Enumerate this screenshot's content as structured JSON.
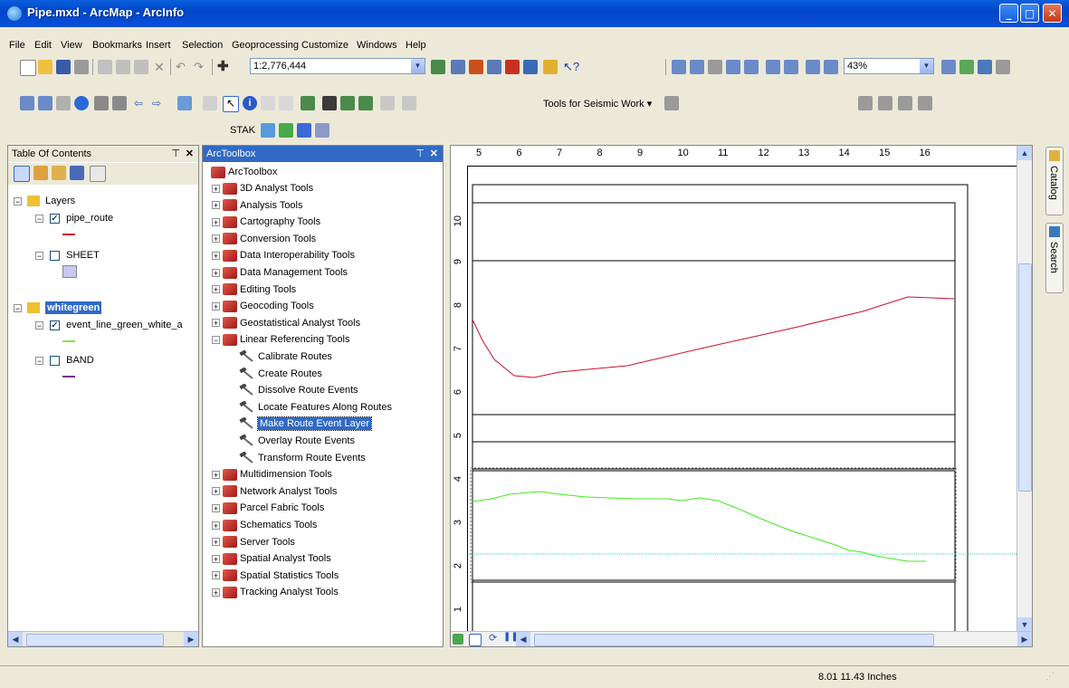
{
  "window": {
    "title": "Pipe.mxd - ArcMap - ArcInfo"
  },
  "menu": [
    "File",
    "Edit",
    "View",
    "Bookmarks",
    "Insert",
    "Selection",
    "Geoprocessing",
    "Customize",
    "Windows",
    "Help"
  ],
  "toolbar": {
    "scale_value": "1:2,776,444",
    "zoom_value": "43%",
    "seismic_label": "Tools for Seismic Work ▾",
    "stak_label": "STAK"
  },
  "toc": {
    "title": "Table Of Contents",
    "layers": [
      {
        "name": "Layers",
        "bold": false
      },
      {
        "name": "pipe_route",
        "checked": true,
        "symbol": "#c8102e"
      },
      {
        "name": "SHEET",
        "checked": false,
        "symbol": "#c8c8f0"
      },
      {
        "name": "whitegreen",
        "bold": true
      },
      {
        "name": "event_line_green_white_a",
        "checked": true,
        "symbol": "#7ee84a"
      },
      {
        "name": "BAND",
        "checked": false,
        "symbol": "#7a2a8a"
      }
    ]
  },
  "toolbox": {
    "title": "ArcToolbox",
    "root": "ArcToolbox",
    "items": [
      "3D Analyst Tools",
      "Analysis Tools",
      "Cartography Tools",
      "Conversion Tools",
      "Data Interoperability Tools",
      "Data Management Tools",
      "Editing Tools",
      "Geocoding Tools",
      "Geostatistical Analyst Tools",
      "Linear Referencing Tools"
    ],
    "lr_tools": [
      "Calibrate Routes",
      "Create Routes",
      "Dissolve Route Events",
      "Locate Features Along Routes",
      "Make Route Event Layer",
      "Overlay Route Events",
      "Transform Route Events"
    ],
    "selected_tool": "Make Route Event Layer",
    "items_after": [
      "Multidimension Tools",
      "Network Analyst Tools",
      "Parcel Fabric Tools",
      "Schematics Tools",
      "Server Tools",
      "Spatial Analyst Tools",
      "Spatial Statistics Tools",
      "Tracking Analyst Tools"
    ]
  },
  "map": {
    "ruler_top": [
      "5",
      "6",
      "7",
      "8",
      "9",
      "10",
      "11",
      "12",
      "13",
      "14",
      "15",
      "16"
    ],
    "ruler_left": [
      "10",
      "9",
      "8",
      "7",
      "6",
      "5",
      "4",
      "3",
      "2",
      "1"
    ]
  },
  "side_tabs": [
    "Catalog",
    "Search"
  ],
  "status": {
    "coords": "8.01  11.43 Inches"
  }
}
